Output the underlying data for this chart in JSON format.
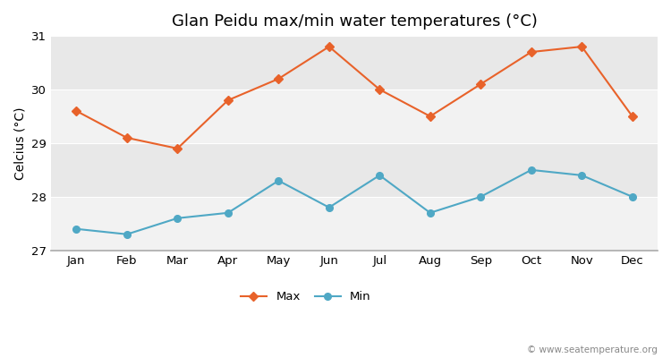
{
  "title": "Glan Peidu max/min water temperatures (°C)",
  "ylabel": "Celcius (°C)",
  "months": [
    "Jan",
    "Feb",
    "Mar",
    "Apr",
    "May",
    "Jun",
    "Jul",
    "Aug",
    "Sep",
    "Oct",
    "Nov",
    "Dec"
  ],
  "max_temps": [
    29.6,
    29.1,
    28.9,
    29.8,
    30.2,
    30.8,
    30.0,
    29.5,
    30.1,
    30.7,
    30.8,
    29.5
  ],
  "min_temps": [
    27.4,
    27.3,
    27.6,
    27.7,
    28.3,
    27.8,
    28.4,
    27.7,
    28.0,
    28.5,
    28.4,
    28.0
  ],
  "max_color": "#e8622a",
  "min_color": "#4fa8c5",
  "ylim": [
    27,
    31
  ],
  "yticks": [
    27,
    28,
    29,
    30,
    31
  ],
  "figure_bg": "#ffffff",
  "plot_bg": "#ffffff",
  "band_dark": "#e8e8e8",
  "band_light": "#f2f2f2",
  "title_fontsize": 13,
  "axis_label_fontsize": 10,
  "tick_fontsize": 9.5,
  "legend_label_max": "Max",
  "legend_label_min": "Min",
  "watermark": "© www.seatemperature.org",
  "spine_color": "#aaaaaa"
}
